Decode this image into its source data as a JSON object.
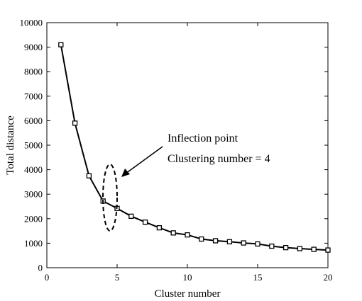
{
  "chart_data": {
    "type": "line",
    "xlabel": "Cluster number",
    "ylabel": "Total distance",
    "xlim": [
      0,
      20
    ],
    "ylim": [
      0,
      10000
    ],
    "xticks": [
      0,
      5,
      10,
      15,
      20
    ],
    "yticks": [
      0,
      1000,
      2000,
      3000,
      4000,
      5000,
      6000,
      7000,
      8000,
      9000,
      10000
    ],
    "grid": false,
    "series": [
      {
        "marker": "square",
        "color": "#000000",
        "x": [
          1,
          2,
          3,
          4,
          5,
          6,
          7,
          8,
          9,
          10,
          11,
          12,
          13,
          14,
          15,
          16,
          17,
          18,
          19,
          20
        ],
        "y": [
          9100,
          5900,
          3750,
          2720,
          2420,
          2100,
          1860,
          1630,
          1420,
          1340,
          1170,
          1100,
          1060,
          1010,
          970,
          880,
          820,
          780,
          750,
          720
        ]
      }
    ],
    "annotations": [
      {
        "line1": "Inflection point",
        "line2": "Clustering number = 4"
      }
    ]
  }
}
